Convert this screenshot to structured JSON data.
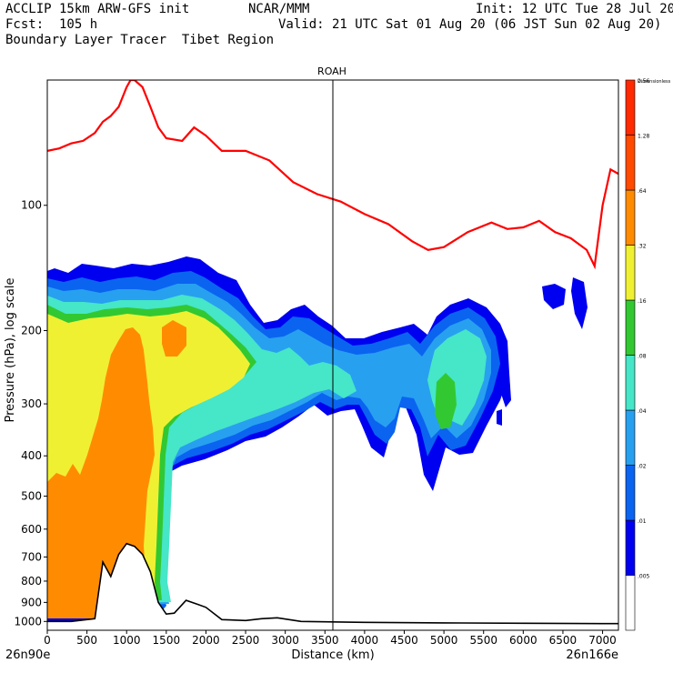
{
  "header": {
    "model": "ACCLIP 15km ARW-GFS init",
    "org": "NCAR/MMM",
    "init": "Init: 12 UTC Tue 28 Jul 20",
    "fcst": "Fcst:  105 h",
    "valid": "Valid: 21 UTC Sat 01 Aug 20 (06 JST Sun 02 Aug 20)",
    "product": "Boundary Layer Tracer  Tibet Region"
  },
  "chart_data": {
    "type": "cross-section contour",
    "title": "ROAH",
    "xlabel": "Distance (km)",
    "ylabel": "Pressure (hPa), log scale",
    "xlim": [
      0,
      7200
    ],
    "ylim": [
      1050,
      50
    ],
    "x_ticks": [
      0,
      500,
      1000,
      1500,
      2000,
      2500,
      3000,
      3500,
      4000,
      4500,
      5000,
      5500,
      6000,
      6500,
      7000
    ],
    "y_ticks": [
      100,
      200,
      300,
      400,
      500,
      600,
      700,
      800,
      900,
      1000
    ],
    "x_start_label": "26n90e",
    "x_end_label": "26n166e",
    "marker_line_x": 3600,
    "colorbar": {
      "levels": [
        ".005",
        ".01",
        ".02",
        ".04",
        ".08",
        ".16",
        ".32",
        ".64",
        "1.28",
        "2.56",
        "Dimensionless"
      ],
      "colors": [
        "#ffffff",
        "#0000f0",
        "#0a64f0",
        "#28a0f0",
        "#46e6c8",
        "#32c832",
        "#f0f032",
        "#ff8c00",
        "#ff4a00",
        "#ff2a00"
      ]
    },
    "series": [
      {
        "name": "Tropopause",
        "color": "#ff0000",
        "x": [
          0,
          150,
          300,
          450,
          600,
          700,
          800,
          900,
          1000,
          1050,
          1100,
          1200,
          1300,
          1400,
          1500,
          1700,
          1850,
          2000,
          2200,
          2500,
          2800,
          3100,
          3400,
          3700,
          4000,
          4300,
          4600,
          4800,
          5000,
          5300,
          5600,
          5800,
          6000,
          6200,
          6400,
          6600,
          6800,
          6900,
          7000,
          7100,
          7200
        ],
        "y": [
          74,
          73,
          71,
          70,
          67,
          63,
          61,
          58,
          52,
          50,
          50,
          52,
          58,
          65,
          69,
          70,
          65,
          68,
          74,
          74,
          78,
          88,
          94,
          98,
          105,
          111,
          122,
          128,
          126,
          116,
          110,
          114,
          113,
          109,
          116,
          120,
          128,
          140,
          100,
          82,
          84
        ]
      },
      {
        "name": "Surface pressure",
        "color": "#000000",
        "x": [
          0,
          300,
          600,
          700,
          800,
          900,
          1000,
          1100,
          1200,
          1300,
          1400,
          1500,
          1600,
          1750,
          1900,
          2000,
          2200,
          2500,
          2700,
          2900,
          3200,
          4000,
          5000,
          6000,
          7000,
          7200
        ],
        "y": [
          1000,
          1000,
          985,
          720,
          780,
          690,
          650,
          660,
          690,
          760,
          900,
          960,
          955,
          890,
          910,
          925,
          990,
          995,
          985,
          980,
          1000,
          1005,
          1008,
          1010,
          1012,
          1012
        ]
      },
      {
        "name": "Tracer-levels",
        "levels": [
          0.01,
          0.02,
          0.04,
          0.08,
          0.16,
          0.32,
          0.64
        ]
      }
    ]
  }
}
